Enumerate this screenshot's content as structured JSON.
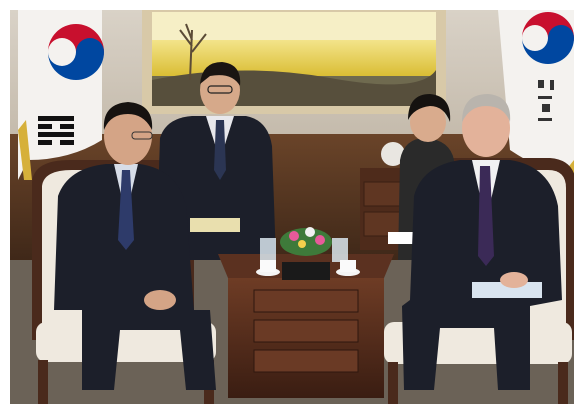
{
  "photo": {
    "subject": "meeting-room-photo",
    "colors": {
      "wall": "#cfc7bb",
      "wood_panel": "#5a3a24",
      "carpet": "#6b6257",
      "painting_field": "#e9d23a",
      "painting_sky": "#f6efc6",
      "suit": "#1c1f2a",
      "chair_fabric": "#efe9df",
      "chair_wood": "#4a2a1c",
      "table_wood": "#5b3120",
      "flag_red": "#c8102e",
      "flag_blue": "#0047a0"
    }
  }
}
